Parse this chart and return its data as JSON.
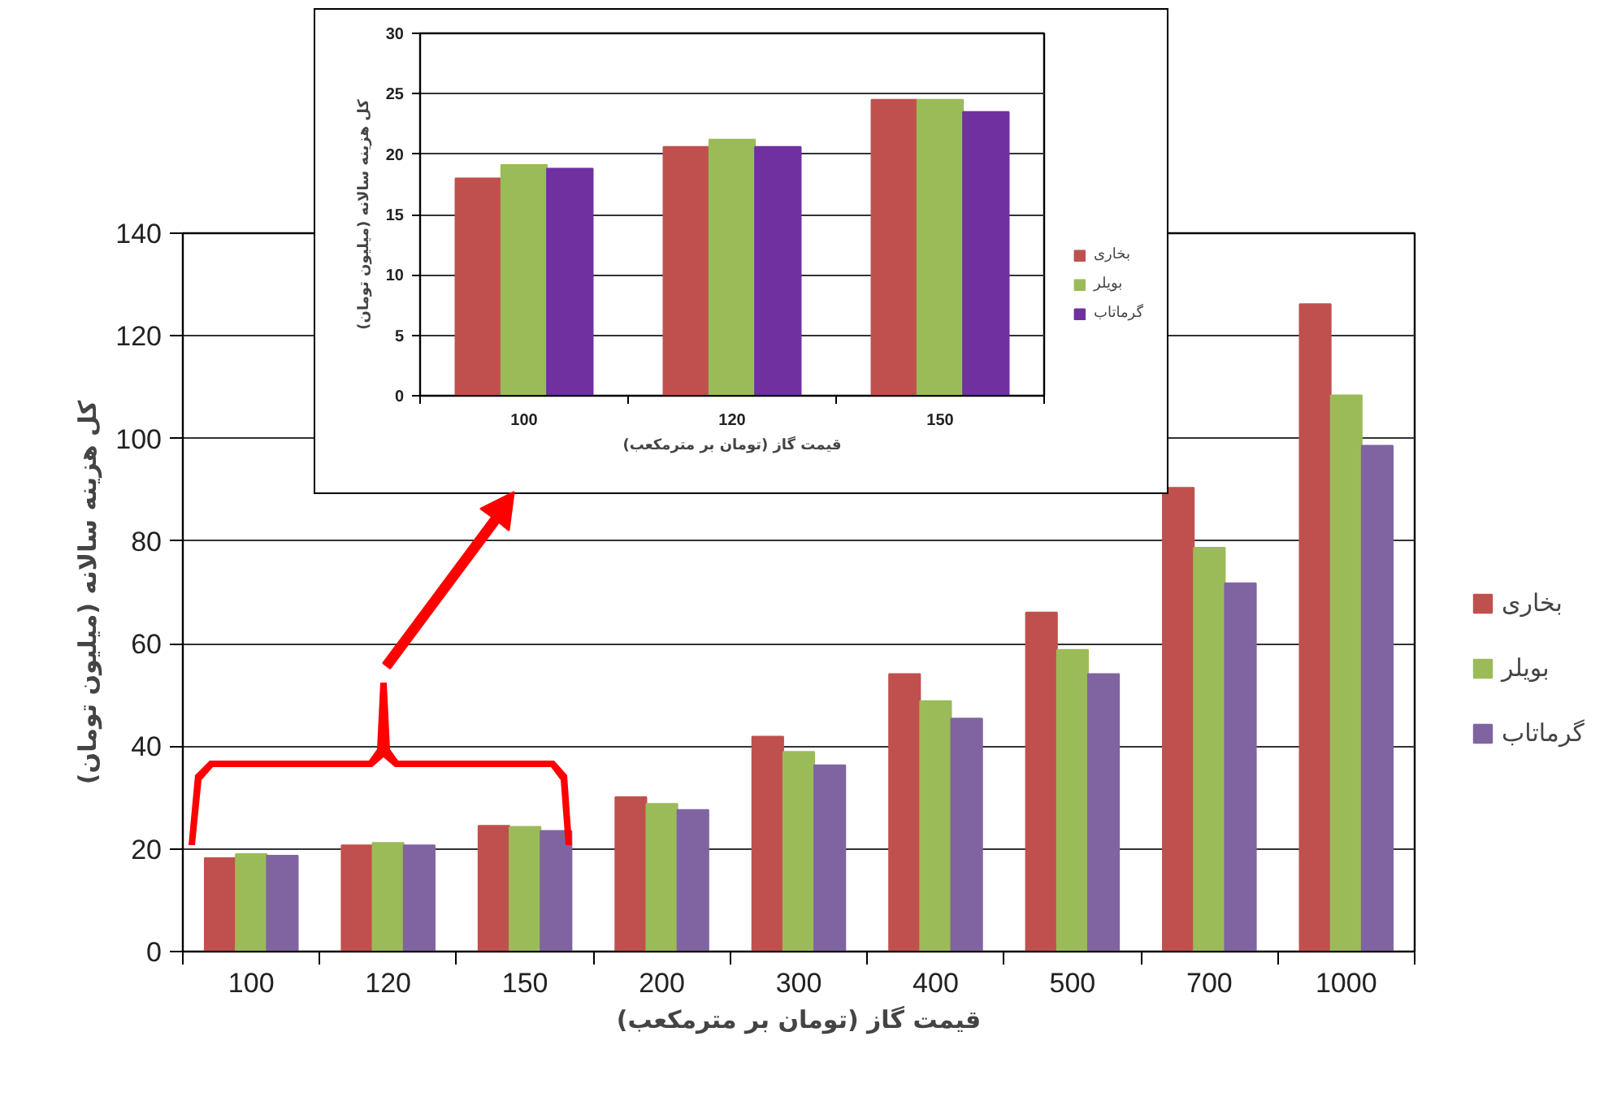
{
  "chart_data": [
    {
      "type": "bar",
      "xlabel": "قیمت گاز (تومان بر مترمکعب)",
      "ylabel": "کل هزینه سالانه (میلیون تومان)",
      "categories": [
        "100",
        "120",
        "150",
        "200",
        "300",
        "400",
        "500",
        "700",
        "1000"
      ],
      "series": [
        {
          "name": "بخاری",
          "color": "#c0504d",
          "values": [
            18.2,
            20.7,
            24.5,
            30.1,
            41.9,
            54.1,
            66.1,
            90.4,
            126.2
          ]
        },
        {
          "name": "بویلر",
          "color": "#9bbb59",
          "values": [
            19.0,
            21.2,
            24.3,
            28.8,
            38.9,
            48.8,
            58.8,
            78.7,
            108.4
          ]
        },
        {
          "name": "گرماتاب",
          "color": "#8064a2",
          "values": [
            18.7,
            20.7,
            23.5,
            27.6,
            36.3,
            45.4,
            54.1,
            71.8,
            98.6
          ]
        }
      ],
      "ylim": [
        0,
        140
      ],
      "yticks": [
        0,
        20,
        40,
        60,
        80,
        100,
        120,
        140
      ],
      "grid": "y",
      "legend": "right"
    },
    {
      "type": "bar",
      "xlabel": "قیمت گاز (تومان بر مترمکعب)",
      "ylabel": "کل هزینه سالانه (میلیون تومان)",
      "categories": [
        "100",
        "120",
        "150"
      ],
      "series": [
        {
          "name": "بخاری",
          "color": "#c0504d",
          "values": [
            18.0,
            20.6,
            24.5
          ]
        },
        {
          "name": "بویلر",
          "color": "#9bbb59",
          "values": [
            19.1,
            21.2,
            24.5
          ]
        },
        {
          "name": "گرماتاب",
          "color": "#7030a0",
          "values": [
            18.8,
            20.6,
            23.5
          ]
        }
      ],
      "ylim": [
        0,
        30
      ],
      "yticks": [
        0,
        5,
        10,
        15,
        20,
        25,
        30
      ],
      "grid": "y",
      "legend": "right"
    }
  ]
}
